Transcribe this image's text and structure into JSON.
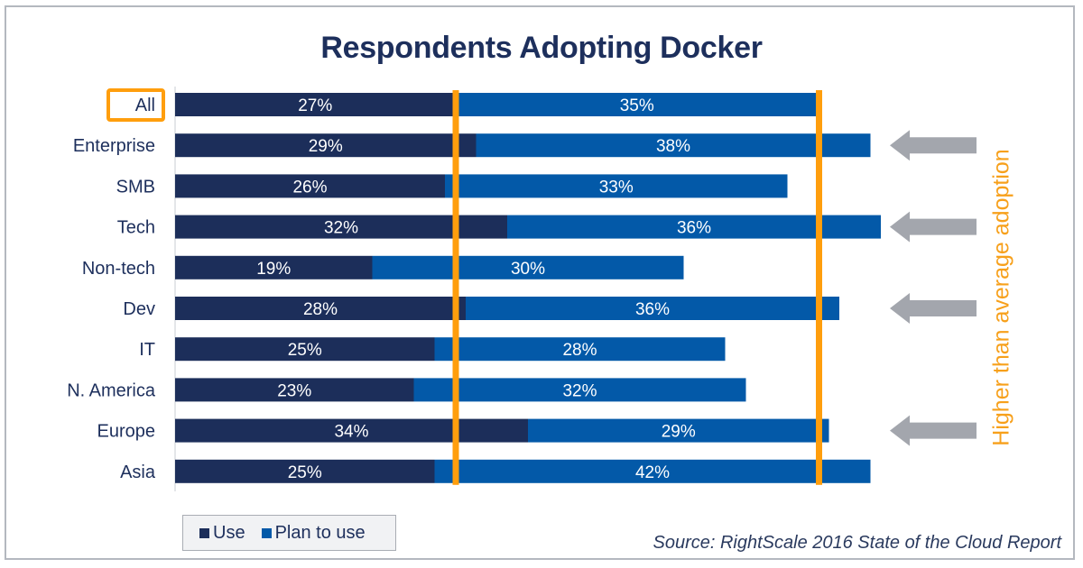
{
  "colors": {
    "use": "#1c2e5a",
    "plan": "#0359a8",
    "highlight": "#ff9e0d",
    "arrow": "#a3a6ad",
    "text": "#1d2f5c",
    "annotation_text": "#f7a01b"
  },
  "chart_data": {
    "type": "bar",
    "orientation": "horizontal",
    "stacked": true,
    "title": "Respondents Adopting Docker",
    "xlabel": "",
    "ylabel": "",
    "xlim": [
      0,
      70
    ],
    "grid": false,
    "categories": [
      "All",
      "Enterprise",
      "SMB",
      "Tech",
      "Non-tech",
      "Dev",
      "IT",
      "N. America",
      "Europe",
      "Asia"
    ],
    "series": [
      {
        "name": "Use",
        "values": [
          27,
          29,
          26,
          32,
          19,
          28,
          25,
          23,
          34,
          25
        ]
      },
      {
        "name": "Plan to use",
        "values": [
          35,
          38,
          33,
          36,
          30,
          36,
          28,
          32,
          29,
          42
        ]
      }
    ],
    "data_labels": {
      "Use": [
        "27%",
        "29%",
        "26%",
        "32%",
        "19%",
        "28%",
        "25%",
        "23%",
        "34%",
        "25%"
      ],
      "Plan to use": [
        "35%",
        "38%",
        "33%",
        "36%",
        "30%",
        "36%",
        "28%",
        "32%",
        "29%",
        "42%"
      ]
    },
    "reference_lines": [
      {
        "label": "All: Use",
        "value": 27
      },
      {
        "label": "All: Use + Plan to use",
        "value": 62
      }
    ],
    "highlighted_category": "All",
    "arrow_categories": [
      "Enterprise",
      "Tech",
      "Dev",
      "Europe"
    ],
    "annotation": "Higher than average adoption",
    "legend": {
      "position": "bottom-left",
      "entries": [
        "Use",
        "Plan to use"
      ]
    },
    "source": "Source: RightScale 2016 State of the Cloud Report"
  }
}
